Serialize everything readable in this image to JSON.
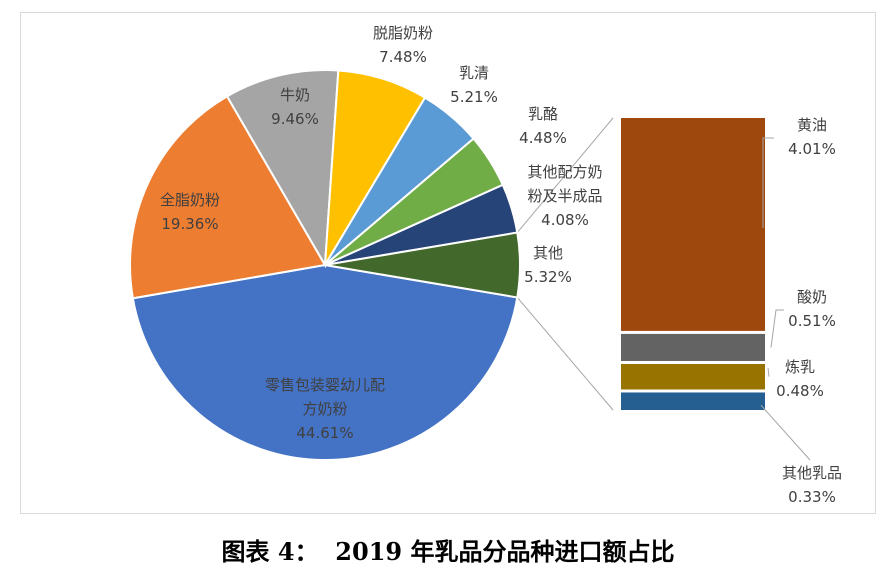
{
  "caption": "图表 4：  2019 年乳品分品种进口额占比",
  "chart_data": {
    "type": "bar-of-pie",
    "title": "",
    "pie": {
      "slices": [
        {
          "name": "零售包装婴幼儿配方奶粉",
          "name_lines": [
            "零售包装婴幼儿配",
            "方奶粉"
          ],
          "value": 44.61,
          "label": "44.61%",
          "color": "#4472C4"
        },
        {
          "name": "全脂奶粉",
          "name_lines": [
            "全脂奶粉"
          ],
          "value": 19.36,
          "label": "19.36%",
          "color": "#ED7D31"
        },
        {
          "name": "牛奶",
          "name_lines": [
            "牛奶"
          ],
          "value": 9.46,
          "label": "9.46%",
          "color": "#A5A5A5"
        },
        {
          "name": "脱脂奶粉",
          "name_lines": [
            "脱脂奶粉"
          ],
          "value": 7.48,
          "label": "7.48%",
          "color": "#FFC000"
        },
        {
          "name": "乳清",
          "name_lines": [
            "乳清"
          ],
          "value": 5.21,
          "label": "5.21%",
          "color": "#5B9BD5"
        },
        {
          "name": "乳酪",
          "name_lines": [
            "乳酪"
          ],
          "value": 4.48,
          "label": "4.48%",
          "color": "#70AD47"
        },
        {
          "name": "其他配方奶粉及半成品",
          "name_lines": [
            "其他配方奶",
            "粉及半成品"
          ],
          "value": 4.08,
          "label": "4.08%",
          "color": "#264478"
        },
        {
          "name": "其他",
          "name_lines": [
            "其他"
          ],
          "value": 5.32,
          "label": "5.32%",
          "color": "#43682B"
        }
      ]
    },
    "bar": {
      "segments": [
        {
          "name": "黄油",
          "value": 4.01,
          "label": "4.01%",
          "color": "#9E480E"
        },
        {
          "name": "酸奶",
          "value": 0.51,
          "label": "0.51%",
          "color": "#636363"
        },
        {
          "name": "炼乳",
          "value": 0.48,
          "label": "0.48%",
          "color": "#997300"
        },
        {
          "name": "其他乳品",
          "value": 0.33,
          "label": "0.33%",
          "color": "#255E91"
        }
      ]
    }
  }
}
